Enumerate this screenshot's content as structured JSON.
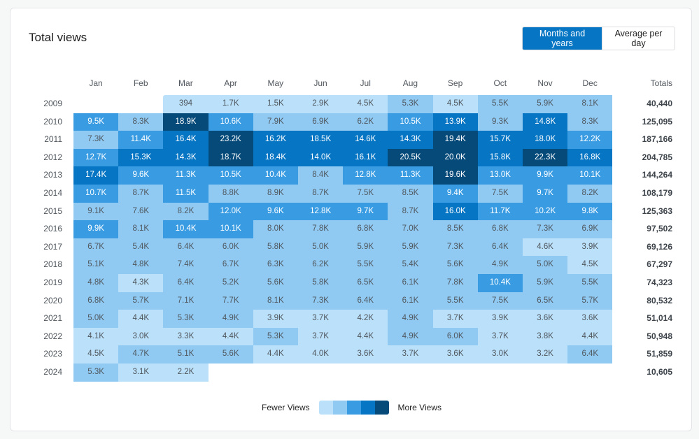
{
  "header": {
    "title": "Total views",
    "toggle": {
      "active": "Months and years",
      "inactive": "Average per day"
    }
  },
  "legend": {
    "low": "Fewer Views",
    "high": "More Views",
    "colors": [
      "#bbe0fa",
      "#90caf2",
      "#399ce3",
      "#0675c4",
      "#064a7a"
    ]
  },
  "chart_data": {
    "type": "heatmap",
    "title": "Total views",
    "x": [
      "Jan",
      "Feb",
      "Mar",
      "Apr",
      "May",
      "Jun",
      "Jul",
      "Aug",
      "Sep",
      "Oct",
      "Nov",
      "Dec"
    ],
    "totals_label": "Totals",
    "rows": [
      {
        "year": "2009",
        "values": [
          null,
          null,
          "394",
          "1.7K",
          "1.5K",
          "2.9K",
          "4.5K",
          "5.3K",
          "4.5K",
          "5.5K",
          "5.9K",
          "8.1K"
        ],
        "levels": [
          0,
          0,
          1,
          1,
          1,
          1,
          1,
          2,
          1,
          2,
          2,
          2
        ],
        "total": "40,440"
      },
      {
        "year": "2010",
        "values": [
          "9.5K",
          "8.3K",
          "18.9K",
          "10.6K",
          "7.9K",
          "6.9K",
          "6.2K",
          "10.5K",
          "13.9K",
          "9.3K",
          "14.8K",
          "8.3K"
        ],
        "levels": [
          3,
          2,
          5,
          3,
          2,
          2,
          2,
          3,
          4,
          2,
          4,
          2
        ],
        "total": "125,095"
      },
      {
        "year": "2011",
        "values": [
          "7.3K",
          "11.4K",
          "16.4K",
          "23.2K",
          "16.2K",
          "18.5K",
          "14.6K",
          "14.3K",
          "19.4K",
          "15.7K",
          "18.0K",
          "12.2K"
        ],
        "levels": [
          2,
          3,
          4,
          5,
          4,
          4,
          4,
          4,
          5,
          4,
          4,
          3
        ],
        "total": "187,166"
      },
      {
        "year": "2012",
        "values": [
          "12.7K",
          "15.3K",
          "14.3K",
          "18.7K",
          "18.4K",
          "14.0K",
          "16.1K",
          "20.5K",
          "20.0K",
          "15.8K",
          "22.3K",
          "16.8K"
        ],
        "levels": [
          3,
          4,
          4,
          5,
          4,
          4,
          4,
          5,
          5,
          4,
          5,
          4
        ],
        "total": "204,785"
      },
      {
        "year": "2013",
        "values": [
          "17.4K",
          "9.6K",
          "11.3K",
          "10.5K",
          "10.4K",
          "8.4K",
          "12.8K",
          "11.3K",
          "19.6K",
          "13.0K",
          "9.9K",
          "10.1K"
        ],
        "levels": [
          4,
          3,
          3,
          3,
          3,
          2,
          3,
          3,
          5,
          3,
          3,
          3
        ],
        "total": "144,264"
      },
      {
        "year": "2014",
        "values": [
          "10.7K",
          "8.7K",
          "11.5K",
          "8.8K",
          "8.9K",
          "8.7K",
          "7.5K",
          "8.5K",
          "9.4K",
          "7.5K",
          "9.7K",
          "8.2K"
        ],
        "levels": [
          3,
          2,
          3,
          2,
          2,
          2,
          2,
          2,
          3,
          2,
          3,
          2
        ],
        "total": "108,179"
      },
      {
        "year": "2015",
        "values": [
          "9.1K",
          "7.6K",
          "8.2K",
          "12.0K",
          "9.6K",
          "12.8K",
          "9.7K",
          "8.7K",
          "16.0K",
          "11.7K",
          "10.2K",
          "9.8K"
        ],
        "levels": [
          2,
          2,
          2,
          3,
          3,
          3,
          3,
          2,
          4,
          3,
          3,
          3
        ],
        "total": "125,363"
      },
      {
        "year": "2016",
        "values": [
          "9.9K",
          "8.1K",
          "10.4K",
          "10.1K",
          "8.0K",
          "7.8K",
          "6.8K",
          "7.0K",
          "8.5K",
          "6.8K",
          "7.3K",
          "6.9K"
        ],
        "levels": [
          3,
          2,
          3,
          3,
          2,
          2,
          2,
          2,
          2,
          2,
          2,
          2
        ],
        "total": "97,502"
      },
      {
        "year": "2017",
        "values": [
          "6.7K",
          "5.4K",
          "6.4K",
          "6.0K",
          "5.8K",
          "5.0K",
          "5.9K",
          "5.9K",
          "7.3K",
          "6.4K",
          "4.6K",
          "3.9K"
        ],
        "levels": [
          2,
          2,
          2,
          2,
          2,
          2,
          2,
          2,
          2,
          2,
          1,
          1
        ],
        "total": "69,126"
      },
      {
        "year": "2018",
        "values": [
          "5.1K",
          "4.8K",
          "7.4K",
          "6.7K",
          "6.3K",
          "6.2K",
          "5.5K",
          "5.4K",
          "5.6K",
          "4.9K",
          "5.0K",
          "4.5K"
        ],
        "levels": [
          2,
          2,
          2,
          2,
          2,
          2,
          2,
          2,
          2,
          2,
          2,
          1
        ],
        "total": "67,297"
      },
      {
        "year": "2019",
        "values": [
          "4.8K",
          "4.3K",
          "6.4K",
          "5.2K",
          "5.6K",
          "5.8K",
          "6.5K",
          "6.1K",
          "7.8K",
          "10.4K",
          "5.9K",
          "5.5K"
        ],
        "levels": [
          2,
          1,
          2,
          2,
          2,
          2,
          2,
          2,
          2,
          3,
          2,
          2
        ],
        "total": "74,323"
      },
      {
        "year": "2020",
        "values": [
          "6.8K",
          "5.7K",
          "7.1K",
          "7.7K",
          "8.1K",
          "7.3K",
          "6.4K",
          "6.1K",
          "5.5K",
          "7.5K",
          "6.5K",
          "5.7K"
        ],
        "levels": [
          2,
          2,
          2,
          2,
          2,
          2,
          2,
          2,
          2,
          2,
          2,
          2
        ],
        "total": "80,532"
      },
      {
        "year": "2021",
        "values": [
          "5.0K",
          "4.4K",
          "5.3K",
          "4.9K",
          "3.9K",
          "3.7K",
          "4.2K",
          "4.9K",
          "3.7K",
          "3.9K",
          "3.6K",
          "3.6K"
        ],
        "levels": [
          2,
          1,
          2,
          2,
          1,
          1,
          1,
          2,
          1,
          1,
          1,
          1
        ],
        "total": "51,014"
      },
      {
        "year": "2022",
        "values": [
          "4.1K",
          "3.0K",
          "3.3K",
          "4.4K",
          "5.3K",
          "3.7K",
          "4.4K",
          "4.9K",
          "6.0K",
          "3.7K",
          "3.8K",
          "4.4K"
        ],
        "levels": [
          1,
          1,
          1,
          1,
          2,
          1,
          1,
          2,
          2,
          1,
          1,
          1
        ],
        "total": "50,948"
      },
      {
        "year": "2023",
        "values": [
          "4.5K",
          "4.7K",
          "5.1K",
          "5.6K",
          "4.4K",
          "4.0K",
          "3.6K",
          "3.7K",
          "3.6K",
          "3.0K",
          "3.2K",
          "6.4K"
        ],
        "levels": [
          1,
          2,
          2,
          2,
          1,
          1,
          1,
          1,
          1,
          1,
          1,
          2
        ],
        "total": "51,859"
      },
      {
        "year": "2024",
        "values": [
          "5.3K",
          "3.1K",
          "2.2K",
          null,
          null,
          null,
          null,
          null,
          null,
          null,
          null,
          null
        ],
        "levels": [
          2,
          1,
          1,
          0,
          0,
          0,
          0,
          0,
          0,
          0,
          0,
          0
        ],
        "total": "10,605"
      }
    ]
  }
}
